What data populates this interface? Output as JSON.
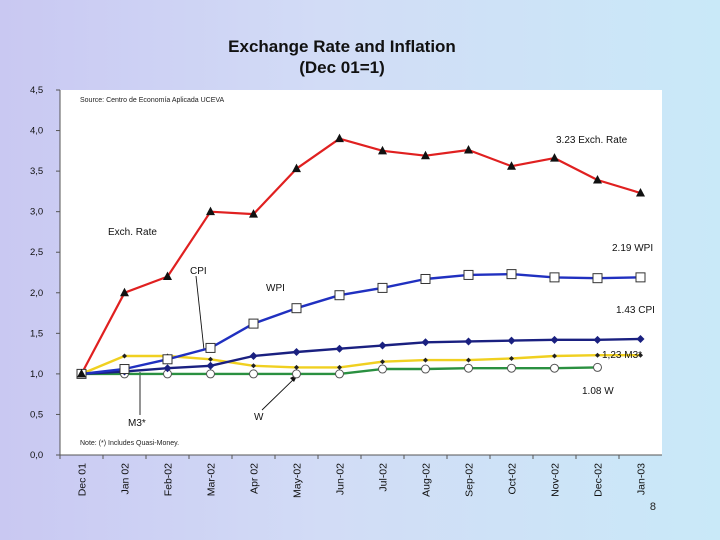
{
  "page_number": "8",
  "chart_data": {
    "type": "line",
    "title": "Exchange Rate and Inflation",
    "subtitle": "(Dec 01=1)",
    "source_note": "Source: Centro de Economía Aplicada UCEVA",
    "footnote": "Note: (*) Includes Quasi-Money.",
    "ylim": [
      0,
      4.5
    ],
    "yticks": [
      "0,0",
      "0,5",
      "1,0",
      "1,5",
      "2,0",
      "2,5",
      "3,0",
      "3,5",
      "4,0",
      "4,5"
    ],
    "grid": false,
    "categories": [
      "Dec 01",
      "Jan 02",
      "Feb-02",
      "Mar-02",
      "Apr 02",
      "May-02",
      "Jun-02",
      "Jul-02",
      "Aug-02",
      "Sep-02",
      "Oct-02",
      "Nov-02",
      "Dec-02",
      "Jan-03"
    ],
    "series": [
      {
        "name": "Exch. Rate",
        "color": "#e02020",
        "marker": "triangle",
        "values": [
          1.0,
          2.0,
          2.2,
          3.0,
          2.97,
          3.53,
          3.9,
          3.75,
          3.69,
          3.76,
          3.56,
          3.66,
          3.39,
          3.23
        ]
      },
      {
        "name": "WPI",
        "color": "#2030c0",
        "marker": "square",
        "values": [
          1.0,
          1.06,
          1.18,
          1.32,
          1.62,
          1.81,
          1.97,
          2.06,
          2.17,
          2.22,
          2.23,
          2.19,
          2.18,
          2.19
        ]
      },
      {
        "name": "CPI",
        "color": "#1a2080",
        "marker": "diamond",
        "values": [
          1.0,
          1.03,
          1.07,
          1.1,
          1.22,
          1.27,
          1.31,
          1.35,
          1.39,
          1.4,
          1.41,
          1.42,
          1.42,
          1.43
        ]
      },
      {
        "name": "M3*",
        "color": "#f0d020",
        "marker": "small-diamond",
        "values": [
          1.0,
          1.22,
          1.22,
          1.18,
          1.1,
          1.08,
          1.08,
          1.15,
          1.17,
          1.17,
          1.19,
          1.22,
          1.23,
          1.23
        ]
      },
      {
        "name": "W",
        "color": "#2a9040",
        "marker": "circle",
        "values": [
          1.0,
          1.0,
          1.0,
          1.0,
          1.0,
          1.0,
          1.0,
          1.06,
          1.06,
          1.07,
          1.07,
          1.07,
          1.08,
          null
        ]
      }
    ],
    "annotations": [
      {
        "text": "3.23 Exch. Rate",
        "series": "Exch. Rate"
      },
      {
        "text": "2.19 WPI",
        "series": "WPI"
      },
      {
        "text": "1.43 CPI",
        "series": "CPI"
      },
      {
        "text": "1,23 M3*",
        "series": "M3*"
      },
      {
        "text": "1.08 W",
        "series": "W"
      },
      {
        "text": "Exch. Rate",
        "series": "Exch. Rate"
      },
      {
        "text": "CPI",
        "series": "CPI"
      },
      {
        "text": "WPI",
        "series": "WPI"
      },
      {
        "text": "M3*",
        "series": "M3*"
      },
      {
        "text": "W",
        "series": "W"
      }
    ]
  }
}
